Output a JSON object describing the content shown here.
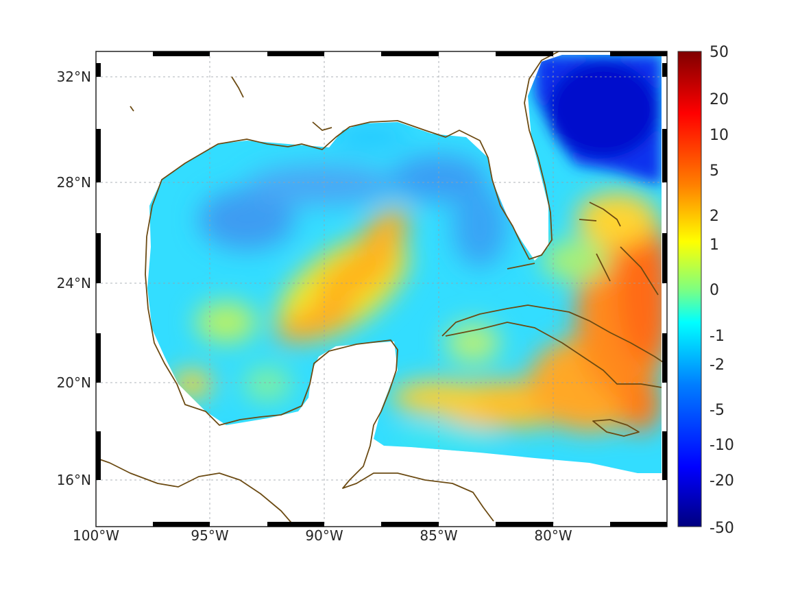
{
  "map": {
    "x_ticks": [
      "100°W",
      "95°W",
      "90°W",
      "85°W",
      "80°W"
    ],
    "y_ticks": [
      "32°N",
      "28°N",
      "24°N",
      "20°N",
      "16°N"
    ],
    "colorbar_ticks": [
      "50",
      "20",
      "10",
      "5",
      "2",
      "1",
      "0",
      "-1",
      "-2",
      "-5",
      "-10",
      "-20",
      "-50"
    ],
    "colormap": [
      "#00007f",
      "#0000ff",
      "#007fff",
      "#00ffff",
      "#7fff7f",
      "#ffff00",
      "#ff7f00",
      "#ff0000",
      "#7f0000"
    ],
    "coast_color": "#6b4a12",
    "gridlines": "dotted",
    "extent": {
      "lon_min": -100,
      "lon_max": -75,
      "lat_min": 14.3,
      "lat_max": 33
    }
  }
}
